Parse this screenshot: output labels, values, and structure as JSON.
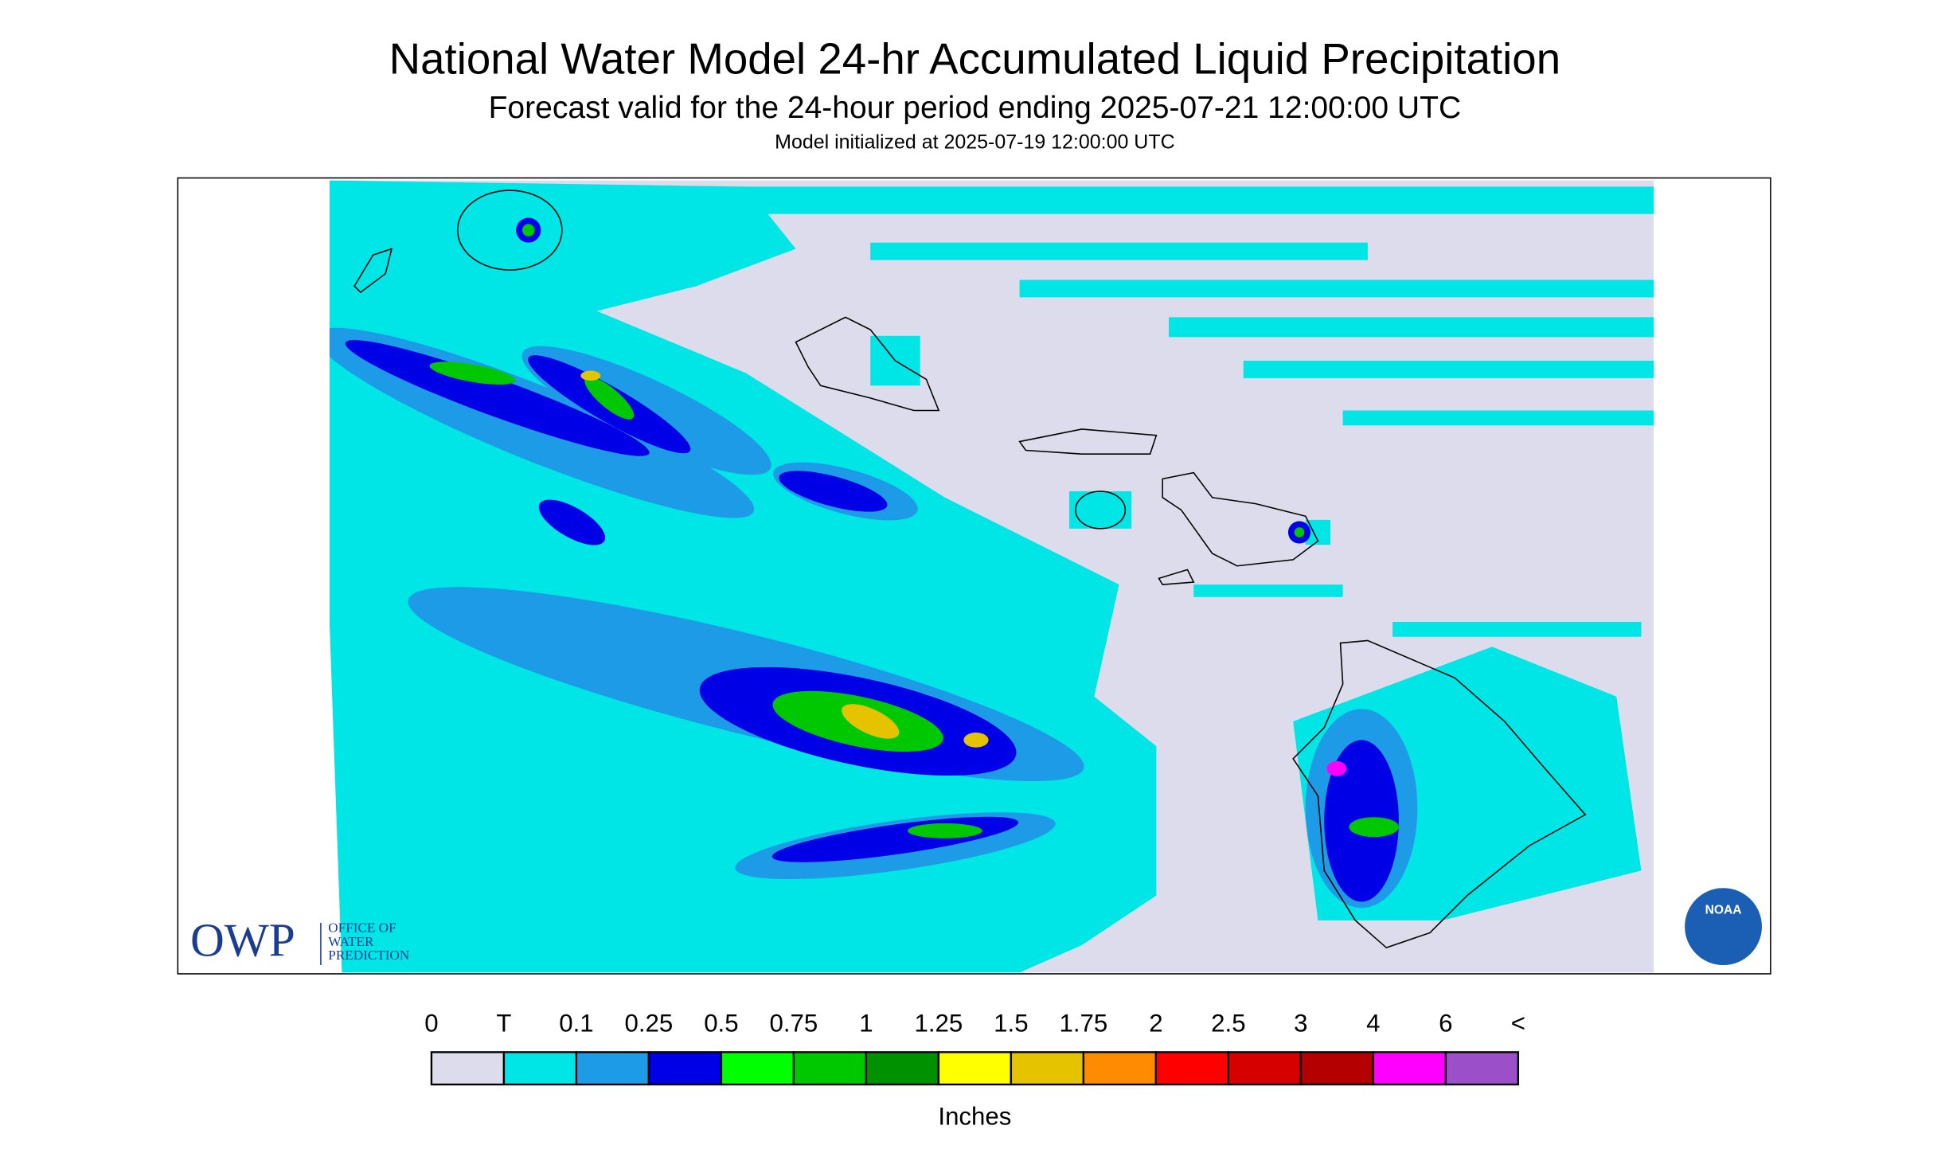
{
  "header": {
    "title": "National Water Model 24-hr Accumulated Liquid Precipitation",
    "subtitle": "Forecast valid for the 24-hour period ending 2025-07-21 12:00:00 UTC",
    "init": "Model initialized at 2025-07-19 12:00:00 UTC"
  },
  "legend": {
    "labels": [
      "0",
      "T",
      "0.1",
      "0.25",
      "0.5",
      "0.75",
      "1",
      "1.25",
      "1.5",
      "1.75",
      "2",
      "2.5",
      "3",
      "4",
      "6",
      "<"
    ],
    "colors": [
      "#dcdcec",
      "#00e5e5",
      "#1e9be6",
      "#0000e6",
      "#00ff00",
      "#00c800",
      "#009100",
      "#ffff00",
      "#e6c300",
      "#ff8c00",
      "#ff0000",
      "#d70000",
      "#b40000",
      "#ff00ff",
      "#9b4fc8"
    ],
    "unit": "Inches"
  },
  "logos": {
    "owp": {
      "initials": "OWP",
      "lines": [
        "OFFICE OF",
        "WATER",
        "PREDICTION"
      ]
    },
    "noaa": "NOAA"
  }
}
